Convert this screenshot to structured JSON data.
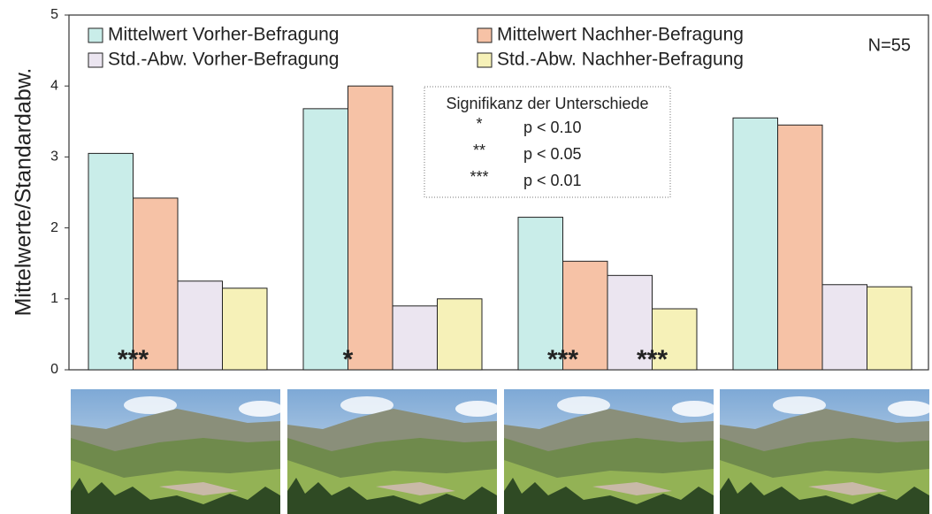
{
  "chart_data": {
    "type": "bar",
    "y_label": "Mittelwerte/Standardabw.",
    "categories": [
      null,
      null,
      null,
      null
    ],
    "series": [
      {
        "name": "Mittelwert Vorher-Befragung",
        "color": "#c9ede9",
        "values": [
          3.05,
          3.68,
          2.15,
          3.55
        ]
      },
      {
        "name": "Mittelwert Nachher-Befragung",
        "color": "#f6c2a6",
        "values": [
          2.42,
          4.0,
          1.53,
          3.45
        ]
      },
      {
        "name": "Std.-Abw. Vorher-Befragung",
        "color": "#ebe5f0",
        "values": [
          1.25,
          0.9,
          1.33,
          1.2
        ]
      },
      {
        "name": "Std.-Abw. Nachher-Befragung",
        "color": "#f6f1b8",
        "values": [
          1.15,
          1.0,
          0.86,
          1.17
        ]
      }
    ],
    "ylim": [
      0,
      5
    ],
    "yticks": [
      0,
      1,
      2,
      3,
      4,
      5
    ],
    "grid": false,
    "annotation": "N=55",
    "significance": {
      "means": [
        "***",
        "*",
        "***",
        null
      ],
      "std_dev": [
        null,
        null,
        "***",
        null
      ]
    },
    "significance_legend": {
      "title": "Signifikanz der Unterschiede",
      "rows": [
        {
          "symbol": "*",
          "label": "p < 0.10"
        },
        {
          "symbol": "**",
          "label": "p < 0.05"
        },
        {
          "symbol": "***",
          "label": "p < 0.01"
        }
      ]
    }
  }
}
